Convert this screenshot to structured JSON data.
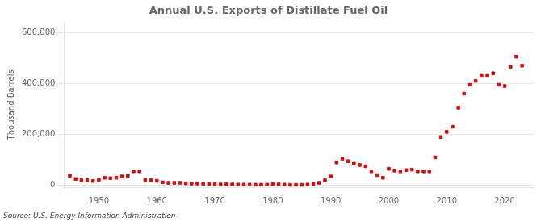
{
  "chart_data": {
    "type": "scatter",
    "title": "Annual U.S. Exports of Distillate Fuel Oil",
    "ylabel": "Thousand Barrels",
    "annotation": "Source: U.S. Energy Information Administration",
    "color": "#cc1111",
    "marker": "square",
    "grid": true,
    "xlim": [
      1944,
      2025
    ],
    "ylim": [
      -8000,
      640000
    ],
    "xticks": [
      1950,
      1960,
      1970,
      1980,
      1990,
      2000,
      2010,
      2020
    ],
    "yticks": [
      0,
      {
        "value": 200000,
        "label": "200,000"
      },
      {
        "value": 400000,
        "label": "400,000"
      },
      {
        "value": 600000,
        "label": "600,000"
      }
    ],
    "x": [
      1945,
      1946,
      1947,
      1948,
      1949,
      1950,
      1951,
      1952,
      1953,
      1954,
      1955,
      1956,
      1957,
      1958,
      1959,
      1960,
      1961,
      1962,
      1963,
      1964,
      1965,
      1966,
      1967,
      1968,
      1969,
      1970,
      1971,
      1972,
      1973,
      1974,
      1975,
      1976,
      1977,
      1978,
      1979,
      1980,
      1981,
      1982,
      1983,
      1984,
      1985,
      1986,
      1987,
      1988,
      1989,
      1990,
      1991,
      1992,
      1993,
      1994,
      1995,
      1996,
      1997,
      1998,
      1999,
      2000,
      2001,
      2002,
      2003,
      2004,
      2005,
      2006,
      2007,
      2008,
      2009,
      2010,
      2011,
      2012,
      2013,
      2014,
      2015,
      2016,
      2017,
      2018,
      2019,
      2020,
      2021,
      2022,
      2023
    ],
    "values": [
      38000,
      25000,
      20000,
      20000,
      17000,
      22000,
      30000,
      28000,
      30000,
      35000,
      38000,
      55000,
      55000,
      22000,
      20000,
      18000,
      12000,
      10000,
      10000,
      10000,
      8000,
      7000,
      7000,
      6000,
      5000,
      5000,
      4000,
      4000,
      3500,
      3000,
      3000,
      3000,
      2500,
      2500,
      3000,
      5000,
      4000,
      3000,
      2000,
      2000,
      2000,
      3000,
      6000,
      10000,
      20000,
      35000,
      90000,
      105000,
      95000,
      85000,
      80000,
      75000,
      55000,
      40000,
      30000,
      65000,
      58000,
      55000,
      60000,
      62000,
      55000,
      55000,
      55000,
      110000,
      190000,
      210000,
      230000,
      305000,
      360000,
      395000,
      410000,
      430000,
      430000,
      440000,
      395000,
      390000,
      465000,
      505000,
      470000
    ]
  }
}
